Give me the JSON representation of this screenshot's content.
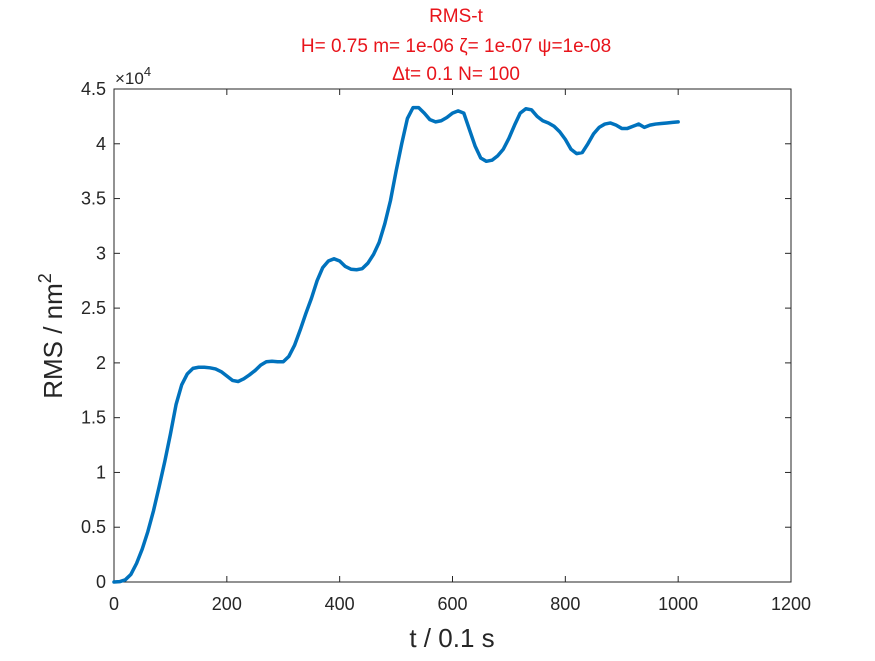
{
  "chart_data": {
    "type": "line",
    "title_lines": [
      "RMS-t",
      "H= 0.75 m= 1e-06 ζ= 1e-07 ψ=1e-08",
      "Δt= 0.1 N= 100"
    ],
    "xlabel": "t / 0.1 s",
    "ylabel_base": "RMS / nm",
    "ylabel_sup": "2",
    "y_multiplier_base": "×10",
    "y_multiplier_exp": "4",
    "xlim": [
      0,
      1200
    ],
    "ylim": [
      0,
      45000
    ],
    "x_ticks": [
      0,
      200,
      400,
      600,
      800,
      1000,
      1200
    ],
    "x_tick_labels": [
      "0",
      "200",
      "400",
      "600",
      "800",
      "1000",
      "1200"
    ],
    "y_ticks": [
      0,
      5000,
      10000,
      15000,
      20000,
      25000,
      30000,
      35000,
      40000,
      45000
    ],
    "y_tick_labels": [
      "0",
      "0.5",
      "1",
      "1.5",
      "2",
      "2.5",
      "3",
      "3.5",
      "4",
      "4.5"
    ],
    "grid": false,
    "series": [
      {
        "color": "#0072bd",
        "x": [
          0,
          10,
          20,
          30,
          40,
          50,
          60,
          70,
          80,
          90,
          100,
          110,
          120,
          130,
          140,
          150,
          160,
          170,
          180,
          190,
          200,
          210,
          220,
          230,
          240,
          250,
          260,
          270,
          280,
          290,
          300,
          310,
          320,
          330,
          340,
          350,
          360,
          370,
          380,
          390,
          400,
          410,
          420,
          430,
          440,
          450,
          460,
          470,
          480,
          490,
          500,
          510,
          520,
          530,
          540,
          550,
          560,
          570,
          580,
          590,
          600,
          610,
          620,
          630,
          640,
          650,
          660,
          670,
          680,
          690,
          700,
          710,
          720,
          730,
          740,
          750,
          760,
          770,
          780,
          790,
          800,
          810,
          820,
          830,
          840,
          850,
          860,
          870,
          880,
          890,
          900,
          910,
          920,
          930,
          940,
          950,
          960,
          970,
          980,
          990,
          1000
        ],
        "y": [
          0,
          30,
          200,
          700,
          1700,
          3000,
          4600,
          6500,
          8700,
          11000,
          13500,
          16200,
          18000,
          19000,
          19500,
          19600,
          19600,
          19550,
          19450,
          19200,
          18800,
          18400,
          18300,
          18550,
          18900,
          19300,
          19800,
          20100,
          20150,
          20100,
          20100,
          20600,
          21600,
          23000,
          24500,
          25900,
          27500,
          28700,
          29300,
          29500,
          29300,
          28800,
          28550,
          28500,
          28600,
          29100,
          29900,
          31000,
          32700,
          34800,
          37500,
          40000,
          42300,
          43300,
          43300,
          42800,
          42200,
          42000,
          42100,
          42400,
          42800,
          43000,
          42800,
          41300,
          39800,
          38700,
          38400,
          38500,
          38900,
          39500,
          40500,
          41700,
          42800,
          43200,
          43100,
          42500,
          42100,
          41900,
          41600,
          41100,
          40400,
          39500,
          39100,
          39200,
          40000,
          40900,
          41500,
          41800,
          41900,
          41700,
          41400,
          41400,
          41600,
          41800,
          41500,
          41700,
          41800,
          41850,
          41900,
          41950,
          42000
        ]
      }
    ]
  }
}
